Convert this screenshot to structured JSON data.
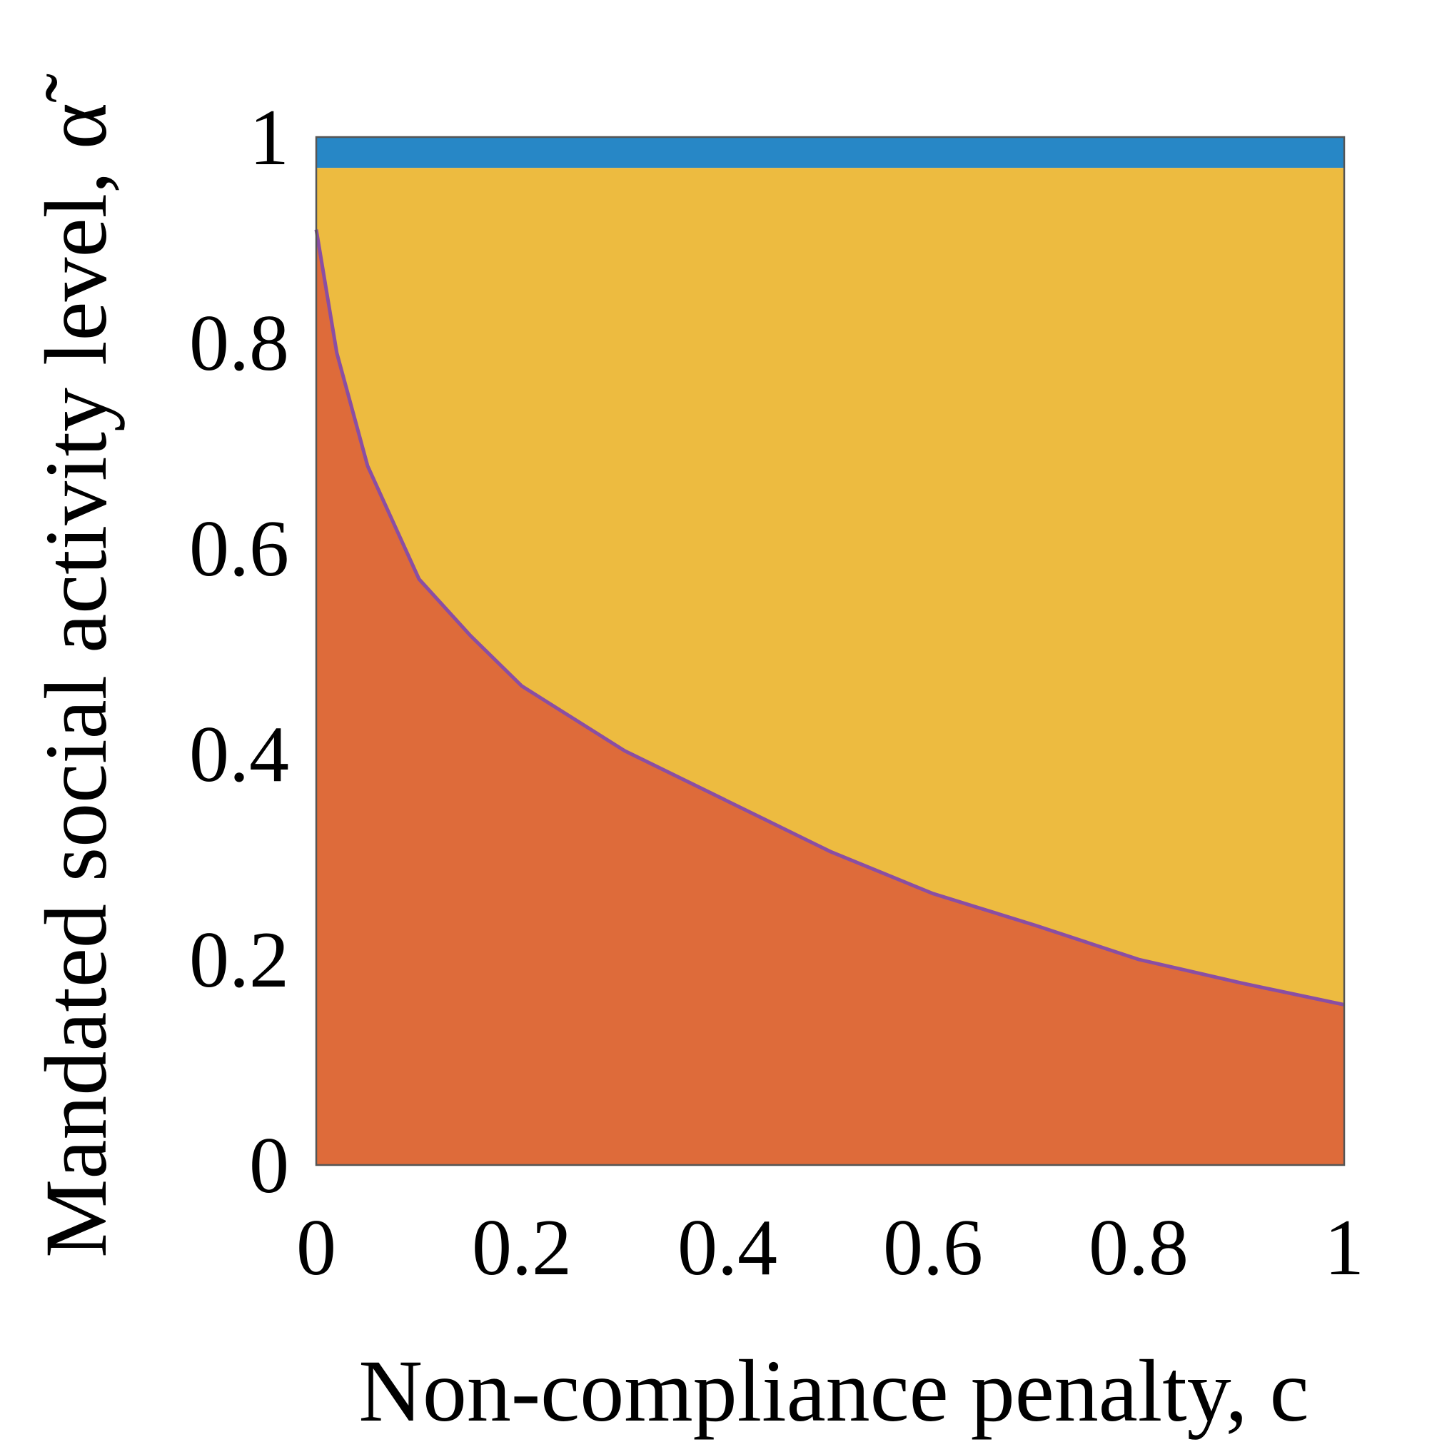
{
  "chart_data": {
    "type": "area",
    "xlabel": "Non-compliance penalty, c",
    "ylabel": "Mandated social activity level, α̃",
    "xlim": [
      0,
      1
    ],
    "ylim": [
      0,
      1
    ],
    "xticks": [
      "0",
      "0.2",
      "0.4",
      "0.6",
      "0.8",
      "1"
    ],
    "yticks": [
      "0",
      "0.2",
      "0.4",
      "0.6",
      "0.8",
      "1"
    ],
    "grid": false,
    "regions": [
      {
        "color": "#2787c6",
        "lower": "constant",
        "lower_value": 0.97,
        "upper_value": 1.0
      },
      {
        "color": "#edbb40",
        "lower": "boundary_curve",
        "upper_value": 0.97
      },
      {
        "color": "#de6b3a",
        "lower_value": 0.0,
        "upper": "boundary_curve"
      }
    ],
    "boundary_curve": {
      "color": "#8a4ea3",
      "x": [
        0,
        0.01,
        0.02,
        0.05,
        0.1,
        0.15,
        0.2,
        0.3,
        0.4,
        0.5,
        0.6,
        0.7,
        0.8,
        0.9,
        1.0
      ],
      "y": [
        0.91,
        0.85,
        0.79,
        0.68,
        0.57,
        0.515,
        0.466,
        0.403,
        0.354,
        0.305,
        0.264,
        0.233,
        0.2,
        0.177,
        0.156
      ]
    }
  }
}
